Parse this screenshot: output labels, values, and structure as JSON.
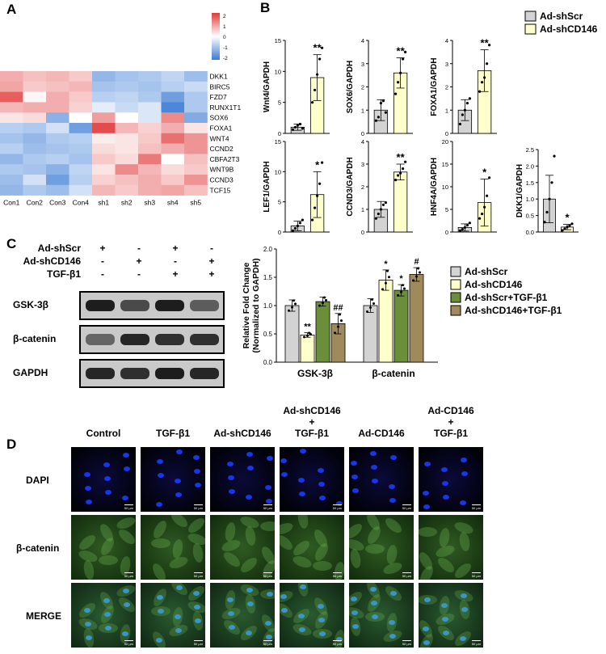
{
  "panels": {
    "a": "A",
    "b": "B",
    "c": "C",
    "d": "D"
  },
  "heatmap": {
    "rows": [
      "DKK1",
      "BIRC5",
      "FZD7",
      "RUNX1T1",
      "SOX6",
      "FOXA1",
      "WNT4",
      "CCND2",
      "CBFA2T3",
      "WNT9B",
      "CCND3",
      "TCF15"
    ],
    "cols": [
      "Con1",
      "Con2",
      "Con3",
      "Con4",
      "sh1",
      "sh2",
      "sh3",
      "sh4",
      "sh5"
    ],
    "values": [
      [
        0.9,
        0.7,
        0.8,
        0.6,
        -1.2,
        -1.0,
        -0.9,
        -0.7,
        -1.1
      ],
      [
        1.0,
        0.6,
        0.7,
        0.8,
        -1.0,
        -0.9,
        -1.0,
        -0.8,
        -0.6
      ],
      [
        1.8,
        0.1,
        0.9,
        0.6,
        -0.8,
        -0.7,
        -0.9,
        -1.6,
        -0.9
      ],
      [
        0.8,
        0.9,
        0.9,
        0.5,
        -0.3,
        -0.6,
        -0.4,
        -2.0,
        -0.9
      ],
      [
        0.3,
        0.4,
        -1.3,
        0.0,
        1.1,
        0.0,
        -0.4,
        1.3,
        -1.4
      ],
      [
        -0.8,
        -0.9,
        -0.5,
        -1.6,
        2.0,
        0.8,
        0.5,
        0.9,
        0.3
      ],
      [
        -1.0,
        -1.2,
        -0.9,
        -0.8,
        0.2,
        0.3,
        0.6,
        1.6,
        1.2
      ],
      [
        -0.8,
        -1.1,
        -1.0,
        -0.9,
        0.4,
        0.3,
        0.7,
        0.9,
        1.2
      ],
      [
        -1.2,
        -0.9,
        -0.8,
        -1.0,
        0.6,
        0.4,
        1.5,
        0.0,
        0.7
      ],
      [
        -0.9,
        -1.0,
        -1.3,
        -0.7,
        0.3,
        1.3,
        0.8,
        0.4,
        0.6
      ],
      [
        -1.1,
        -0.5,
        -1.6,
        -0.8,
        0.5,
        0.7,
        0.9,
        0.6,
        1.2
      ],
      [
        -1.2,
        -0.9,
        -1.1,
        -0.5,
        0.8,
        0.6,
        0.9,
        1.0,
        0.7
      ]
    ],
    "scale_ticks": [
      "2",
      "1",
      "0",
      "-1",
      "-2"
    ],
    "color_high": "#e03a3a",
    "color_mid": "#ffffff",
    "color_low": "#3a7bd5"
  },
  "panel_b": {
    "legend": [
      "Ad-shScr",
      "Ad-shCD146"
    ],
    "colors": [
      "#d3d3d3",
      "#ffffcc"
    ],
    "charts": [
      {
        "ylabel": "Wnt4/GAPDH",
        "yticks": [
          "0",
          "5",
          "10",
          "15"
        ],
        "ymax": 15,
        "values": [
          1.0,
          9.0
        ],
        "sd": [
          0.5,
          3.7
        ],
        "sig": [
          "",
          "**"
        ],
        "points": [
          [
            0.6,
            1.0,
            1.3,
            1.5,
            0.8
          ],
          [
            5.0,
            7.0,
            9.5,
            12.0,
            13.8
          ]
        ]
      },
      {
        "ylabel": "SOX6/GAPDH",
        "yticks": [
          "0",
          "1",
          "2",
          "3",
          "4"
        ],
        "ymax": 4,
        "values": [
          1.0,
          2.6
        ],
        "sd": [
          0.45,
          0.65
        ],
        "sig": [
          "",
          "**"
        ],
        "points": [
          [
            0.55,
            0.7,
            1.3,
            1.4,
            0.9
          ],
          [
            1.7,
            2.2,
            2.6,
            3.2,
            3.5
          ]
        ]
      },
      {
        "ylabel": "FOXA1/GAPDH",
        "yticks": [
          "0",
          "1",
          "2",
          "3",
          "4"
        ],
        "ymax": 4,
        "values": [
          1.0,
          2.7
        ],
        "sd": [
          0.45,
          0.9
        ],
        "sig": [
          "",
          "**"
        ],
        "points": [
          [
            0.4,
            0.8,
            1.0,
            1.3,
            1.5
          ],
          [
            1.8,
            2.2,
            2.4,
            3.0,
            3.8
          ]
        ]
      },
      {
        "ylabel": "LEF1/GAPDH",
        "yticks": [
          "0",
          "5",
          "10",
          "15"
        ],
        "ymax": 15,
        "values": [
          1.0,
          6.2
        ],
        "sd": [
          0.8,
          3.8
        ],
        "sig": [
          "",
          "*"
        ],
        "points": [
          [
            0.2,
            0.6,
            1.0,
            1.5,
            2.0
          ],
          [
            2.0,
            4.0,
            6.0,
            8.0,
            11.5
          ]
        ]
      },
      {
        "ylabel": "CCND3/GAPDH",
        "yticks": [
          "0",
          "1",
          "2",
          "3",
          "4"
        ],
        "ymax": 4,
        "values": [
          1.0,
          2.65
        ],
        "sd": [
          0.35,
          0.35
        ],
        "sig": [
          "",
          "**"
        ],
        "points": [
          [
            0.6,
            0.8,
            1.0,
            1.2,
            1.3
          ],
          [
            2.3,
            2.5,
            2.6,
            2.8,
            3.1
          ]
        ]
      },
      {
        "ylabel": "HNF4A/GAPDH",
        "yticks": [
          "0",
          "5",
          "10",
          "15",
          "20"
        ],
        "ymax": 20,
        "values": [
          1.0,
          6.5
        ],
        "sd": [
          0.8,
          5.2
        ],
        "sig": [
          "",
          "*"
        ],
        "points": [
          [
            0.3,
            0.6,
            1.0,
            1.5,
            2.0
          ],
          [
            3.0,
            4.0,
            5.5,
            8.0,
            12.0
          ]
        ]
      },
      {
        "ylabel": "DKK1/GAPDH",
        "yticks": [
          "0.0",
          "0.5",
          "1.0",
          "1.5",
          "2.0",
          "2.5"
        ],
        "ymax": 2.5,
        "values": [
          1.0,
          0.15
        ],
        "sd": [
          0.72,
          0.08
        ],
        "sig": [
          "",
          "*"
        ],
        "points": [
          [
            0.3,
            0.6,
            1.0,
            1.5,
            2.3
          ],
          [
            0.05,
            0.1,
            0.15,
            0.2,
            0.25
          ]
        ]
      }
    ]
  },
  "panel_c": {
    "treatments": [
      {
        "label": "Ad-shScr",
        "signs": [
          "+",
          "-",
          "+",
          "-"
        ]
      },
      {
        "label": "Ad-shCD146",
        "signs": [
          "-",
          "+",
          "-",
          "+"
        ]
      },
      {
        "label": "TGF-β1",
        "signs": [
          "-",
          "-",
          "+",
          "+"
        ]
      }
    ],
    "blots": [
      "GSK-3β",
      "β-catenin",
      "GAPDH"
    ],
    "blot_intensity": [
      [
        0.95,
        0.7,
        0.95,
        0.6
      ],
      [
        0.55,
        0.9,
        0.85,
        0.85
      ],
      [
        0.9,
        0.85,
        0.95,
        0.9
      ]
    ],
    "chart": {
      "ylabel_line1": "Relative Fold Change",
      "ylabel_line2": "(Normalized to GAPDH)",
      "yticks": [
        "0.0",
        "0.5",
        "1.0",
        "1.5",
        "2.0"
      ],
      "ymax": 2.0,
      "categories": [
        "GSK-3β",
        "β-catenin"
      ],
      "series": [
        {
          "name": "Ad-shScr",
          "color": "#d3d3d3",
          "values": [
            1.0,
            1.0
          ],
          "sd": [
            0.1,
            0.12
          ],
          "sig": [
            "",
            ""
          ]
        },
        {
          "name": "Ad-shCD146",
          "color": "#ffffcc",
          "values": [
            0.48,
            1.45
          ],
          "sd": [
            0.04,
            0.18
          ],
          "sig": [
            "**",
            "*"
          ]
        },
        {
          "name": "Ad-shScr+TGF-β1",
          "color": "#6b8e3a",
          "values": [
            1.07,
            1.27
          ],
          "sd": [
            0.08,
            0.1
          ],
          "sig": [
            "",
            "*"
          ]
        },
        {
          "name": "Ad-shCD146+TGF-β1",
          "color": "#a08a5c",
          "values": [
            0.68,
            1.55
          ],
          "sd": [
            0.18,
            0.12
          ],
          "sig": [
            "##",
            "#"
          ]
        }
      ]
    }
  },
  "panel_d": {
    "columns": [
      {
        "line1": "",
        "line2": "",
        "line3": "Control"
      },
      {
        "line1": "",
        "line2": "",
        "line3": "TGF-β1"
      },
      {
        "line1": "",
        "line2": "",
        "line3": "Ad-shCD146"
      },
      {
        "line1": "Ad-shCD146",
        "line2": "+",
        "line3": "TGF-β1"
      },
      {
        "line1": "",
        "line2": "",
        "line3": "Ad-CD146"
      },
      {
        "line1": "Ad-CD146",
        "line2": "+",
        "line3": "TGF-β1"
      }
    ],
    "rows": [
      "DAPI",
      "β-catenin",
      "MERGE"
    ],
    "scale_text": "50 μm"
  }
}
